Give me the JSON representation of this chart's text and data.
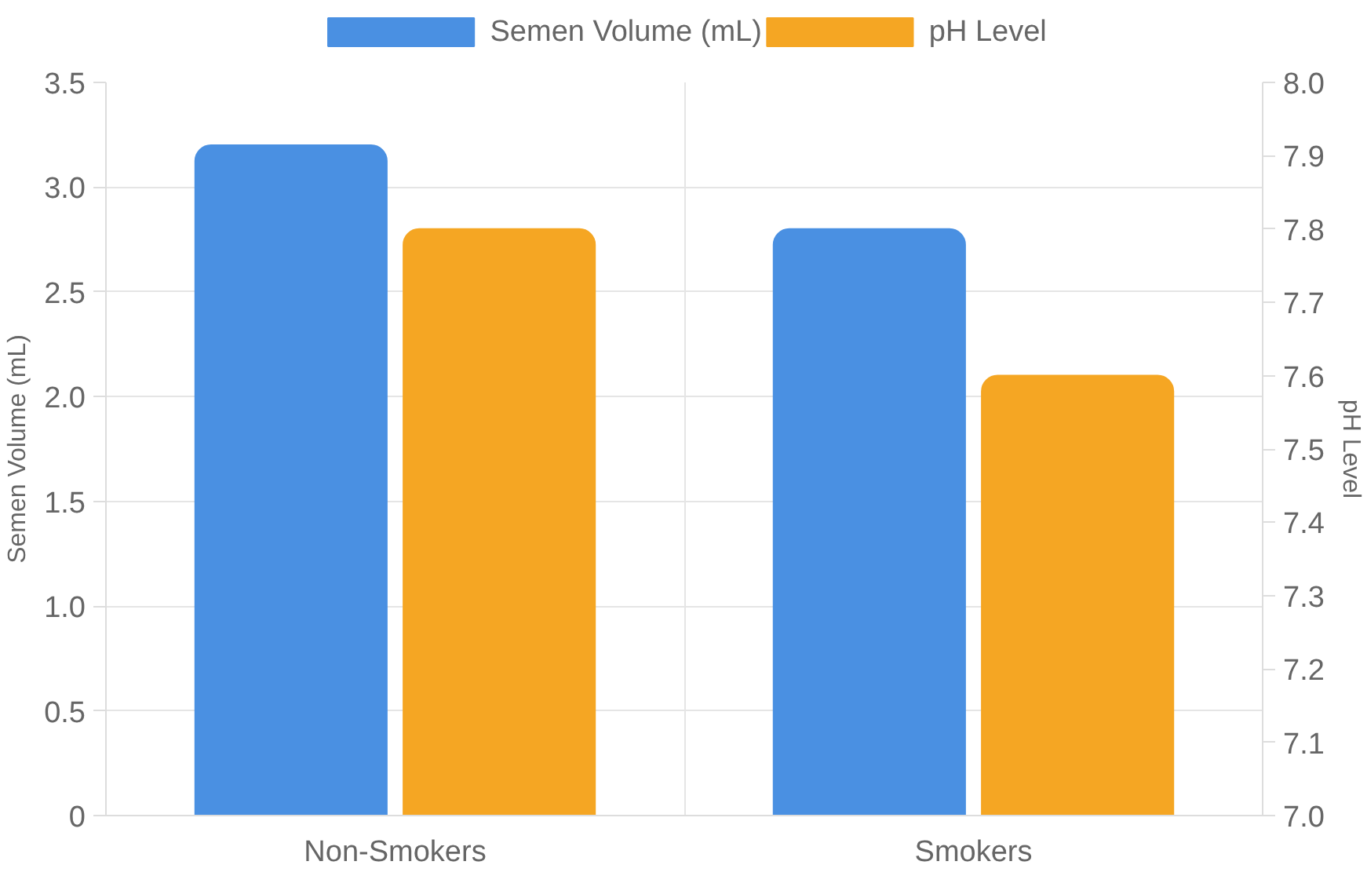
{
  "chart_data": {
    "type": "bar",
    "categories": [
      "Non-Smokers",
      "Smokers"
    ],
    "series": [
      {
        "name": "Semen Volume (mL)",
        "color": "#4a90e2",
        "values": [
          3.2,
          2.8
        ]
      },
      {
        "name": "pH Level",
        "color": "#f5a623",
        "values": [
          7.8,
          7.6
        ],
        "axis": "y2"
      }
    ],
    "ylabel": "Semen Volume (mL)",
    "y2label": "pH Level",
    "ylim": [
      0,
      3.5
    ],
    "yticks": [
      0,
      0.5,
      {
        "value": 1,
        "label": "1.0"
      },
      1.5,
      {
        "value": 2,
        "label": "2.0"
      },
      2.5,
      {
        "value": 3,
        "label": "3.0"
      },
      3.5
    ],
    "y2lim": [
      7.0,
      8.0
    ],
    "y2ticks": [
      {
        "value": 7,
        "label": "7.0"
      },
      7.1,
      7.2,
      7.3,
      7.4,
      7.5,
      7.6,
      7.7,
      7.8,
      7.9,
      {
        "value": 8,
        "label": "8.0"
      }
    ],
    "grid": true,
    "legend": "top"
  }
}
